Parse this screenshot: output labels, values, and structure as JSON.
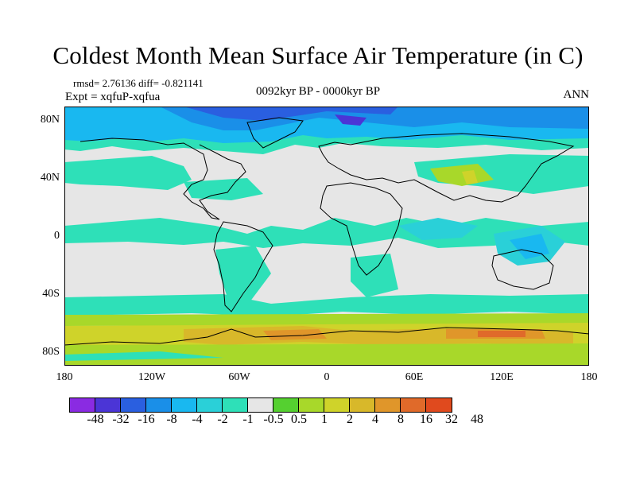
{
  "title": "Coldest Month Mean Surface Air Temperature (in C)",
  "stats": "rmsd= 2.76136 diff= -0.821141",
  "experiment": "Expt = xqfuP-xqfua",
  "period": "0092kyr BP - 0000kyr BP",
  "season": "ANN",
  "map": {
    "projection": "cylindrical equidistant",
    "lon_range": [
      -180,
      180
    ],
    "lat_range": [
      -90,
      90
    ],
    "background_color": "#e6e6e6",
    "y_ticks": [
      "80N",
      "40N",
      "0",
      "40S",
      "80S"
    ],
    "x_ticks": [
      "180",
      "120W",
      "60W",
      "0",
      "60E",
      "120E",
      "180"
    ]
  },
  "colorbar": {
    "colors": [
      "#8a2be2",
      "#4b35d6",
      "#2a5fe0",
      "#1a8fe8",
      "#19b8f0",
      "#2ad0d8",
      "#2ee0b8",
      "#e6e6e6",
      "#55d030",
      "#a8d82a",
      "#cfd32a",
      "#d8b82a",
      "#e0962a",
      "#e06a2a",
      "#e04a1e"
    ],
    "labels": [
      "-48",
      "-32",
      "-16",
      "-8",
      "-4",
      "-2",
      "-1",
      "-0.5",
      "0.5",
      "1",
      "2",
      "4",
      "8",
      "16",
      "32",
      "48"
    ]
  }
}
